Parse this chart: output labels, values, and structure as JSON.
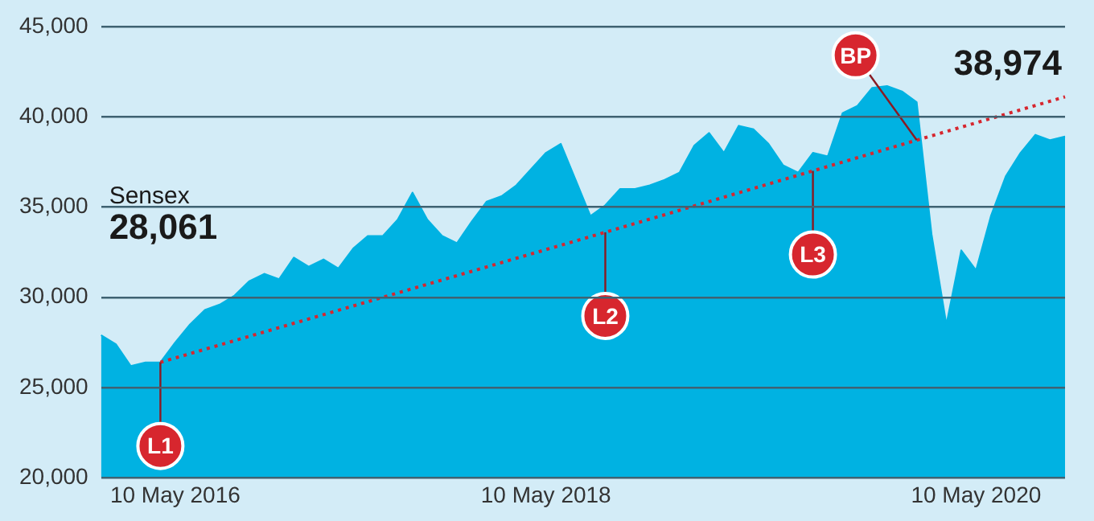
{
  "chart_data": {
    "type": "area",
    "categories": [
      null,
      null,
      null,
      null,
      null,
      "10 May 2016",
      null,
      null,
      null,
      null,
      null,
      null,
      null,
      null,
      null,
      null,
      null,
      null,
      null,
      null,
      null,
      null,
      null,
      null,
      null,
      null,
      null,
      null,
      null,
      null,
      "10 May 2018",
      null,
      null,
      null,
      null,
      null,
      null,
      null,
      null,
      null,
      null,
      null,
      null,
      null,
      null,
      null,
      null,
      null,
      null,
      null,
      null,
      null,
      null,
      null,
      null,
      null,
      null,
      null,
      null,
      "10 May 2020",
      null,
      null,
      null,
      null,
      null,
      null
    ],
    "series": [
      {
        "color": "#00b2e2",
        "values": [
          27900,
          27400,
          26200,
          26400,
          26400,
          27500,
          28500,
          29300,
          29600,
          30100,
          30900,
          31300,
          31000,
          32200,
          31700,
          32100,
          31600,
          32700,
          33400,
          33400,
          34300,
          35800,
          34300,
          33400,
          33000,
          34200,
          35300,
          35600,
          36200,
          37100,
          38000,
          38500,
          36500,
          34500,
          35100,
          36000,
          36000,
          36200,
          36500,
          36900,
          38400,
          39100,
          38000,
          39500,
          39300,
          38500,
          37300,
          36900,
          38000,
          37800,
          40200,
          40600,
          41600,
          41700,
          41400,
          40800,
          33500,
          28500,
          32600,
          31500,
          34500,
          36700,
          38000,
          39000,
          38700,
          38900
        ]
      },
      {
        "type": "line",
        "color": "#d7262e",
        "line_style": "dotted",
        "marker": "none",
        "values": [
          null,
          null,
          null,
          null,
          26400,
          null,
          null,
          null,
          null,
          null,
          null,
          null,
          null,
          null,
          null,
          null,
          null,
          null,
          null,
          null,
          null,
          null,
          null,
          null,
          null,
          null,
          null,
          null,
          null,
          null,
          null,
          null,
          null,
          null,
          33600,
          null,
          null,
          null,
          null,
          null,
          null,
          null,
          null,
          null,
          null,
          null,
          null,
          null,
          37000,
          null,
          null,
          null,
          null,
          null,
          null,
          38700,
          null,
          null,
          null,
          null,
          null,
          null,
          null,
          null,
          null,
          41100
        ],
        "value_labels": [
          null,
          null,
          null,
          null,
          "L1",
          null,
          null,
          null,
          null,
          null,
          null,
          null,
          null,
          null,
          null,
          null,
          null,
          null,
          null,
          null,
          null,
          null,
          null,
          null,
          null,
          null,
          null,
          null,
          null,
          null,
          null,
          null,
          null,
          null,
          "L2",
          null,
          null,
          null,
          null,
          null,
          null,
          null,
          null,
          null,
          null,
          null,
          null,
          null,
          "L3",
          null,
          null,
          null,
          null,
          null,
          null,
          "BP",
          null,
          null,
          null,
          null,
          null,
          null,
          null,
          null,
          null,
          null
        ]
      }
    ],
    "ylim": [
      20000,
      45000
    ],
    "yticks": [
      {
        "value": 20000,
        "label": "20,000"
      },
      {
        "value": 25000,
        "label": "25,000"
      },
      {
        "value": 30000,
        "label": "30,000"
      },
      {
        "value": 35000,
        "label": "35,000"
      },
      {
        "value": 40000,
        "label": "40,000"
      },
      {
        "value": 45000,
        "label": "45,000"
      }
    ],
    "grid": "y",
    "legend": false,
    "annotations": [
      "Sensex",
      "28,061",
      "38,974"
    ]
  }
}
